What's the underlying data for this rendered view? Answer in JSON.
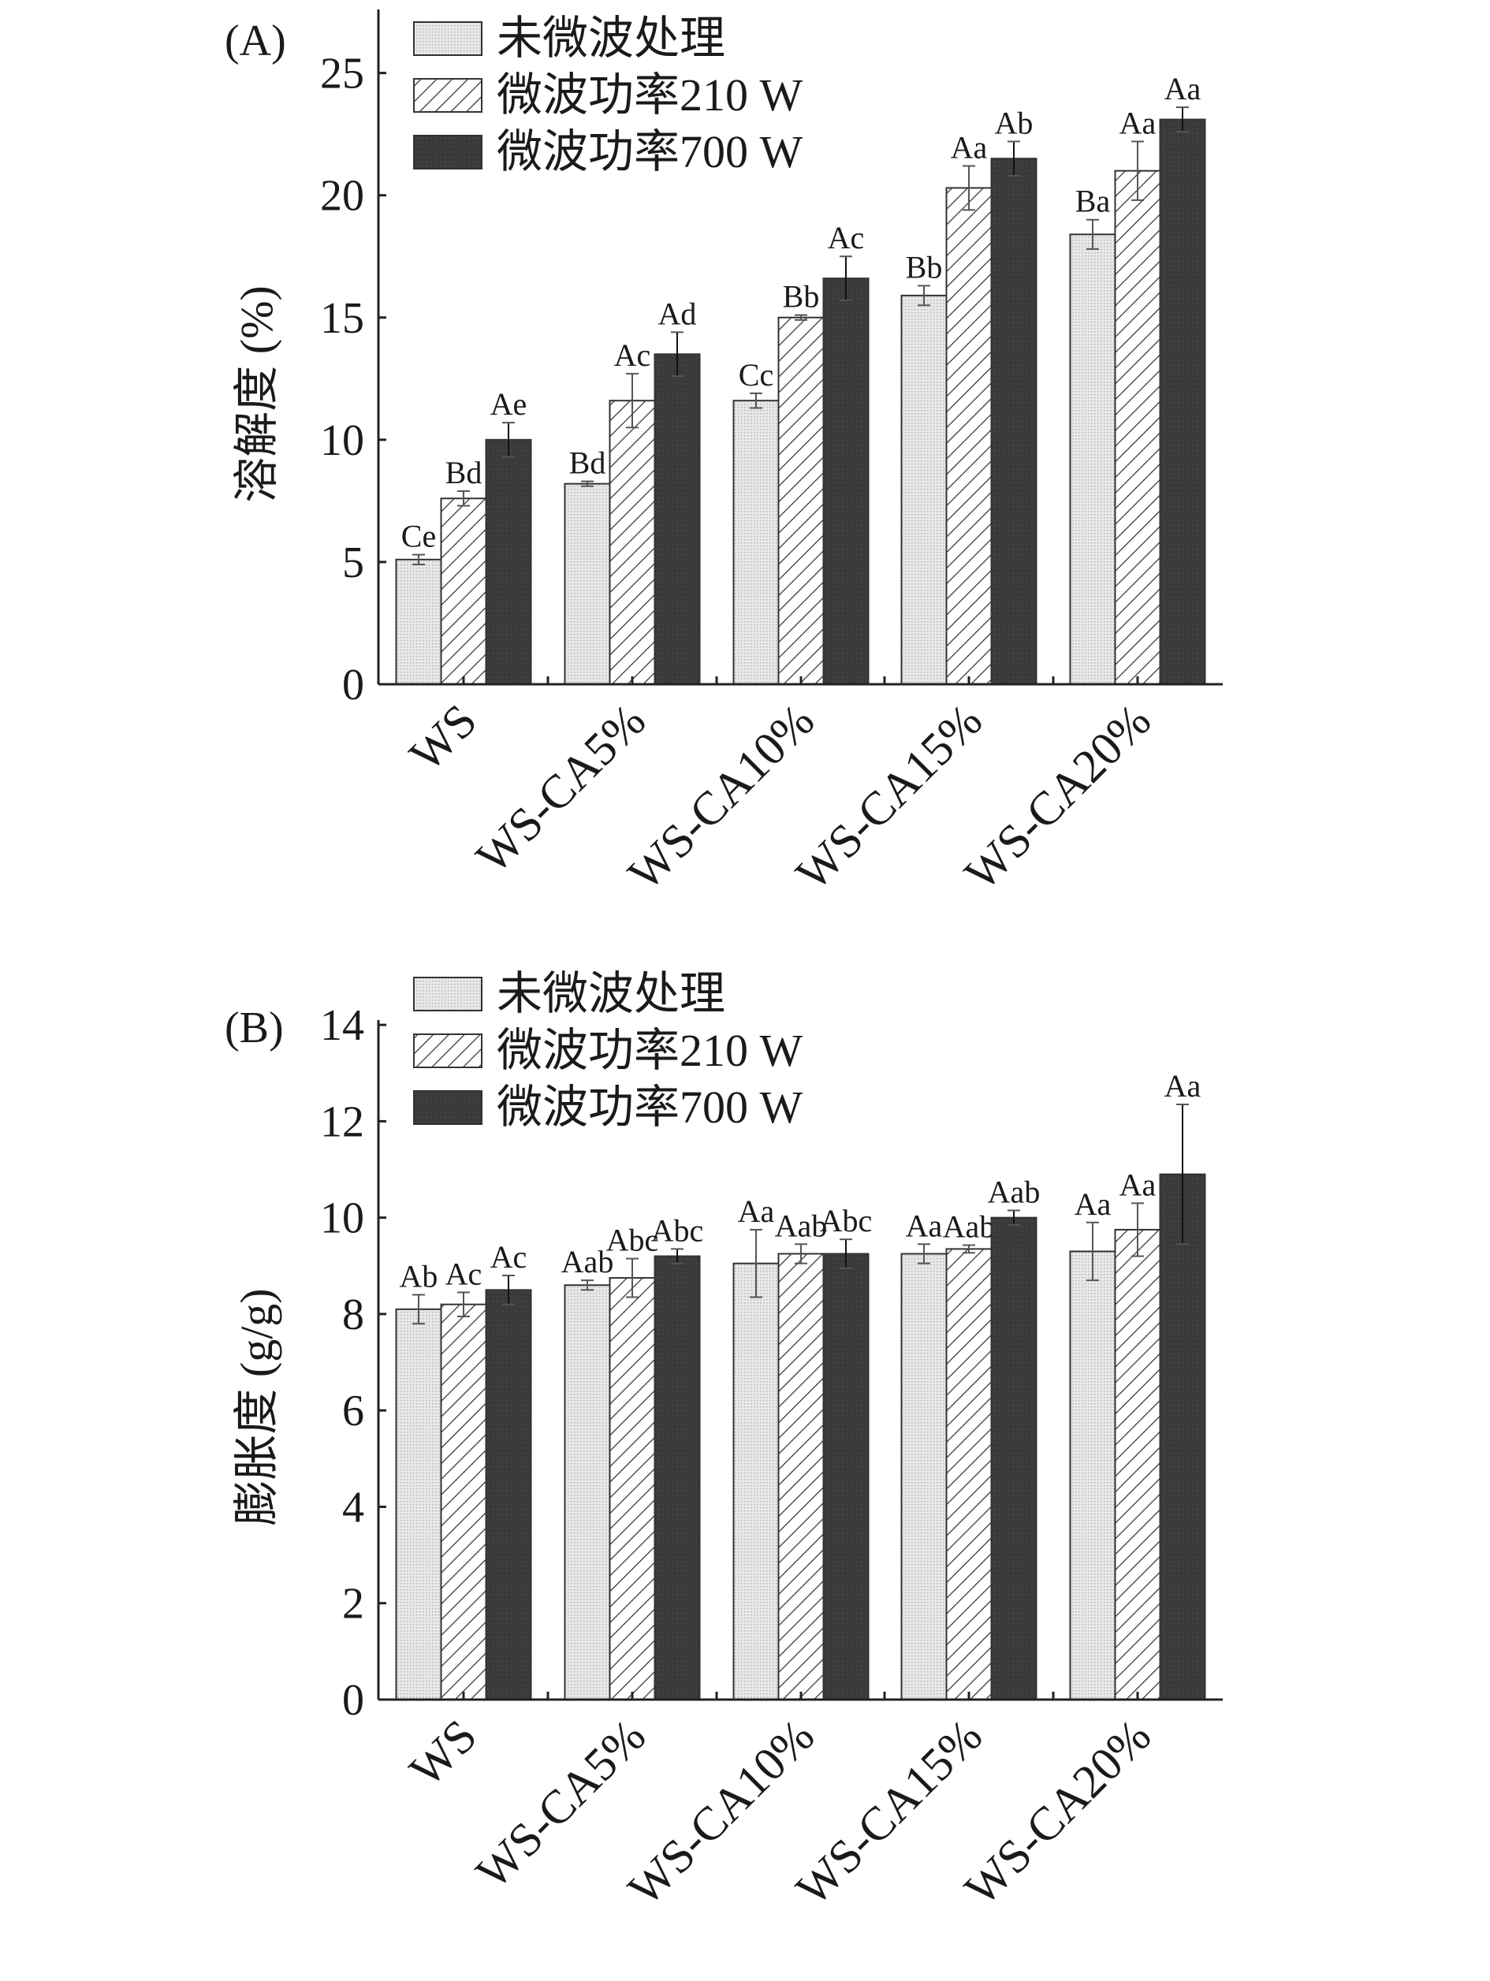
{
  "legend": [
    "未微波处理",
    "微波功率210 W",
    "微波功率700 W"
  ],
  "colors": {
    "untreated": "#e6e6e6",
    "hatch": "#333333",
    "dark": "#3a3a3a",
    "axis": "#222222"
  },
  "chart_data": [
    {
      "type": "bar",
      "panel_label": "(A)",
      "ylabel": "溶解度 (%)",
      "categories": [
        "WS",
        "WS-CA5%",
        "WS-CA10%",
        "WS-CA15%",
        "WS-CA20%"
      ],
      "yticks": [
        0,
        5,
        10,
        15,
        20,
        25
      ],
      "ylim": [
        0,
        27.6
      ],
      "legend_position": "top-left",
      "series": [
        {
          "name": "未微波处理",
          "values": [
            5.1,
            8.2,
            11.6,
            15.9,
            18.4
          ],
          "errors": [
            0.2,
            0.1,
            0.3,
            0.4,
            0.6
          ],
          "labels": [
            "Ce",
            "Bd",
            "Cc",
            "Bb",
            "Ba"
          ]
        },
        {
          "name": "微波功率210 W",
          "values": [
            7.6,
            11.6,
            15.0,
            20.3,
            21.0
          ],
          "errors": [
            0.3,
            1.1,
            0.1,
            0.9,
            1.2
          ],
          "labels": [
            "Bd",
            "Ac",
            "Bb",
            "Aa",
            "Aa"
          ]
        },
        {
          "name": "微波功率700 W",
          "values": [
            10.0,
            13.5,
            16.6,
            21.5,
            23.1
          ],
          "errors": [
            0.7,
            0.9,
            0.9,
            0.7,
            0.5
          ],
          "labels": [
            "Ae",
            "Ad",
            "Ac",
            "Ab",
            "Aa"
          ]
        }
      ]
    },
    {
      "type": "bar",
      "panel_label": "(B)",
      "ylabel": "膨胀度 (g/g)",
      "categories": [
        "WS",
        "WS-CA5%",
        "WS-CA10%",
        "WS-CA15%",
        "WS-CA20%"
      ],
      "yticks": [
        0,
        2,
        4,
        6,
        8,
        10,
        12,
        14
      ],
      "ylim": [
        0,
        14.1
      ],
      "legend_position": "top-left",
      "series": [
        {
          "name": "未微波处理",
          "values": [
            8.1,
            8.6,
            9.05,
            9.25,
            9.3
          ],
          "errors": [
            0.3,
            0.1,
            0.7,
            0.2,
            0.6
          ],
          "labels": [
            "Ab",
            "Aab",
            "Aa",
            "Aa",
            "Aa"
          ]
        },
        {
          "name": "微波功率210 W",
          "values": [
            8.2,
            8.75,
            9.25,
            9.35,
            9.75
          ],
          "errors": [
            0.25,
            0.4,
            0.2,
            0.08,
            0.55
          ],
          "labels": [
            "Ac",
            "Abc",
            "Aab",
            "Aab",
            "Aa"
          ]
        },
        {
          "name": "微波功率700 W",
          "values": [
            8.5,
            9.2,
            9.25,
            10.0,
            10.9
          ],
          "errors": [
            0.3,
            0.15,
            0.3,
            0.15,
            1.45
          ],
          "labels": [
            "Ac",
            "Abc",
            "Abc",
            "Aab",
            "Aa"
          ]
        }
      ]
    }
  ]
}
